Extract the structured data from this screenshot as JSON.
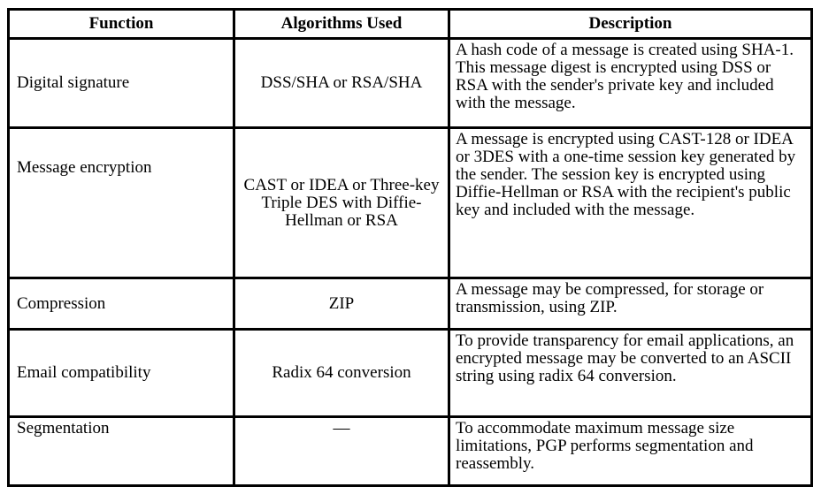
{
  "table": {
    "headers": {
      "function": "Function",
      "algorithms": "Algorithms Used",
      "description": "Description"
    },
    "rows": [
      {
        "function": "Digital signature",
        "algorithms": "DSS/SHA or RSA/SHA",
        "description": "A hash code of a message is created using SHA-1. This message digest is encrypted using DSS or RSA with the sender's private key and included with the message."
      },
      {
        "function": "Message encryption",
        "algorithms": "CAST or IDEA or Three-key Triple DES with Diffie-Hellman or RSA",
        "description": "A message is encrypted using CAST-128 or IDEA or 3DES with a one-time session key generated by the sender. The session key is encrypted using Diffie-Hellman or RSA with the recipient's public key and included with the message."
      },
      {
        "function": "Compression",
        "algorithms": "ZIP",
        "description": "A message may be compressed, for storage or transmission, using ZIP."
      },
      {
        "function": "Email compatibility",
        "algorithms": "Radix 64 conversion",
        "description": "To provide transparency for email applications, an encrypted message may be converted to an ASCII string using radix 64 conversion."
      },
      {
        "function": "Segmentation",
        "algorithms": "—",
        "description": "To accommodate maximum message size limitations, PGP performs segmentation and reassembly."
      }
    ]
  }
}
